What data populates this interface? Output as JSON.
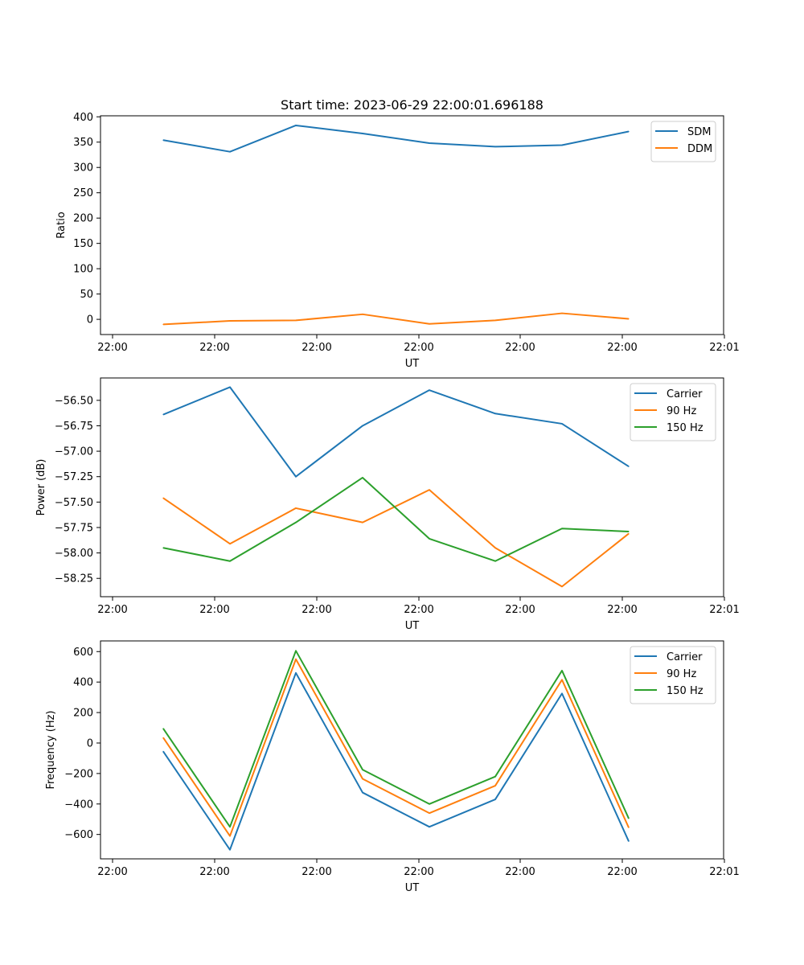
{
  "figure": {
    "title": "Start time: 2023-06-29 22:00:01.696188"
  },
  "chart_data": [
    {
      "type": "line",
      "title": "Start time: 2023-06-29 22:00:01.696188",
      "xlabel": "UT",
      "ylabel": "Ratio",
      "x_tick_labels": [
        "22:00",
        "22:00",
        "22:00",
        "22:00",
        "22:00",
        "22:00",
        "22:00",
        "22:01"
      ],
      "y_ticks": [
        0,
        50,
        100,
        150,
        200,
        250,
        300,
        350,
        400
      ],
      "y_tick_labels": [
        "0",
        "50",
        "100",
        "150",
        "200",
        "250",
        "300",
        "350",
        "400"
      ],
      "ylim": [
        -30,
        402
      ],
      "grid": false,
      "legend": "top-right",
      "series": [
        {
          "name": "SDM",
          "color": "#1f77b4",
          "values": [
            354,
            331,
            383,
            367,
            348,
            341,
            344,
            371
          ]
        },
        {
          "name": "DDM",
          "color": "#ff7f0e",
          "values": [
            -10,
            -3,
            -2,
            10,
            -9,
            -2,
            12,
            1
          ]
        }
      ]
    },
    {
      "type": "line",
      "xlabel": "UT",
      "ylabel": "Power (dB)",
      "x_tick_labels": [
        "22:00",
        "22:00",
        "22:00",
        "22:00",
        "22:00",
        "22:00",
        "22:00",
        "22:01"
      ],
      "y_ticks": [
        -58.25,
        -58.0,
        -57.75,
        -57.5,
        -57.25,
        -57.0,
        -56.75,
        -56.5
      ],
      "y_tick_labels": [
        "−58.25",
        "−58.00",
        "−57.75",
        "−57.50",
        "−57.25",
        "−57.00",
        "−56.75",
        "−56.50"
      ],
      "ylim": [
        -58.43,
        -56.28
      ],
      "grid": false,
      "legend": "top-right",
      "series": [
        {
          "name": "Carrier",
          "color": "#1f77b4",
          "values": [
            -56.64,
            -56.37,
            -57.25,
            -56.75,
            -56.4,
            -56.63,
            -56.73,
            -57.15
          ]
        },
        {
          "name": "90 Hz",
          "color": "#ff7f0e",
          "values": [
            -57.46,
            -57.91,
            -57.56,
            -57.7,
            -57.38,
            -57.95,
            -58.33,
            -57.81
          ]
        },
        {
          "name": "150 Hz",
          "color": "#2ca02c",
          "values": [
            -57.95,
            -58.08,
            -57.7,
            -57.26,
            -57.86,
            -58.08,
            -57.76,
            -57.79
          ]
        }
      ]
    },
    {
      "type": "line",
      "xlabel": "UT",
      "ylabel": "Frequency (Hz)",
      "x_tick_labels": [
        "22:00",
        "22:00",
        "22:00",
        "22:00",
        "22:00",
        "22:00",
        "22:00",
        "22:01"
      ],
      "y_ticks": [
        -600,
        -400,
        -200,
        0,
        200,
        400,
        600
      ],
      "y_tick_labels": [
        "−600",
        "−400",
        "−200",
        "0",
        "200",
        "400",
        "600"
      ],
      "ylim": [
        -760,
        670
      ],
      "grid": false,
      "legend": "top-right",
      "series": [
        {
          "name": "Carrier",
          "color": "#1f77b4",
          "values": [
            -55,
            -700,
            460,
            -325,
            -550,
            -370,
            325,
            -645
          ]
        },
        {
          "name": "90 Hz",
          "color": "#ff7f0e",
          "values": [
            35,
            -610,
            550,
            -235,
            -460,
            -280,
            415,
            -555
          ]
        },
        {
          "name": "150 Hz",
          "color": "#2ca02c",
          "values": [
            95,
            -550,
            605,
            -175,
            -400,
            -220,
            475,
            -495
          ]
        }
      ]
    }
  ]
}
